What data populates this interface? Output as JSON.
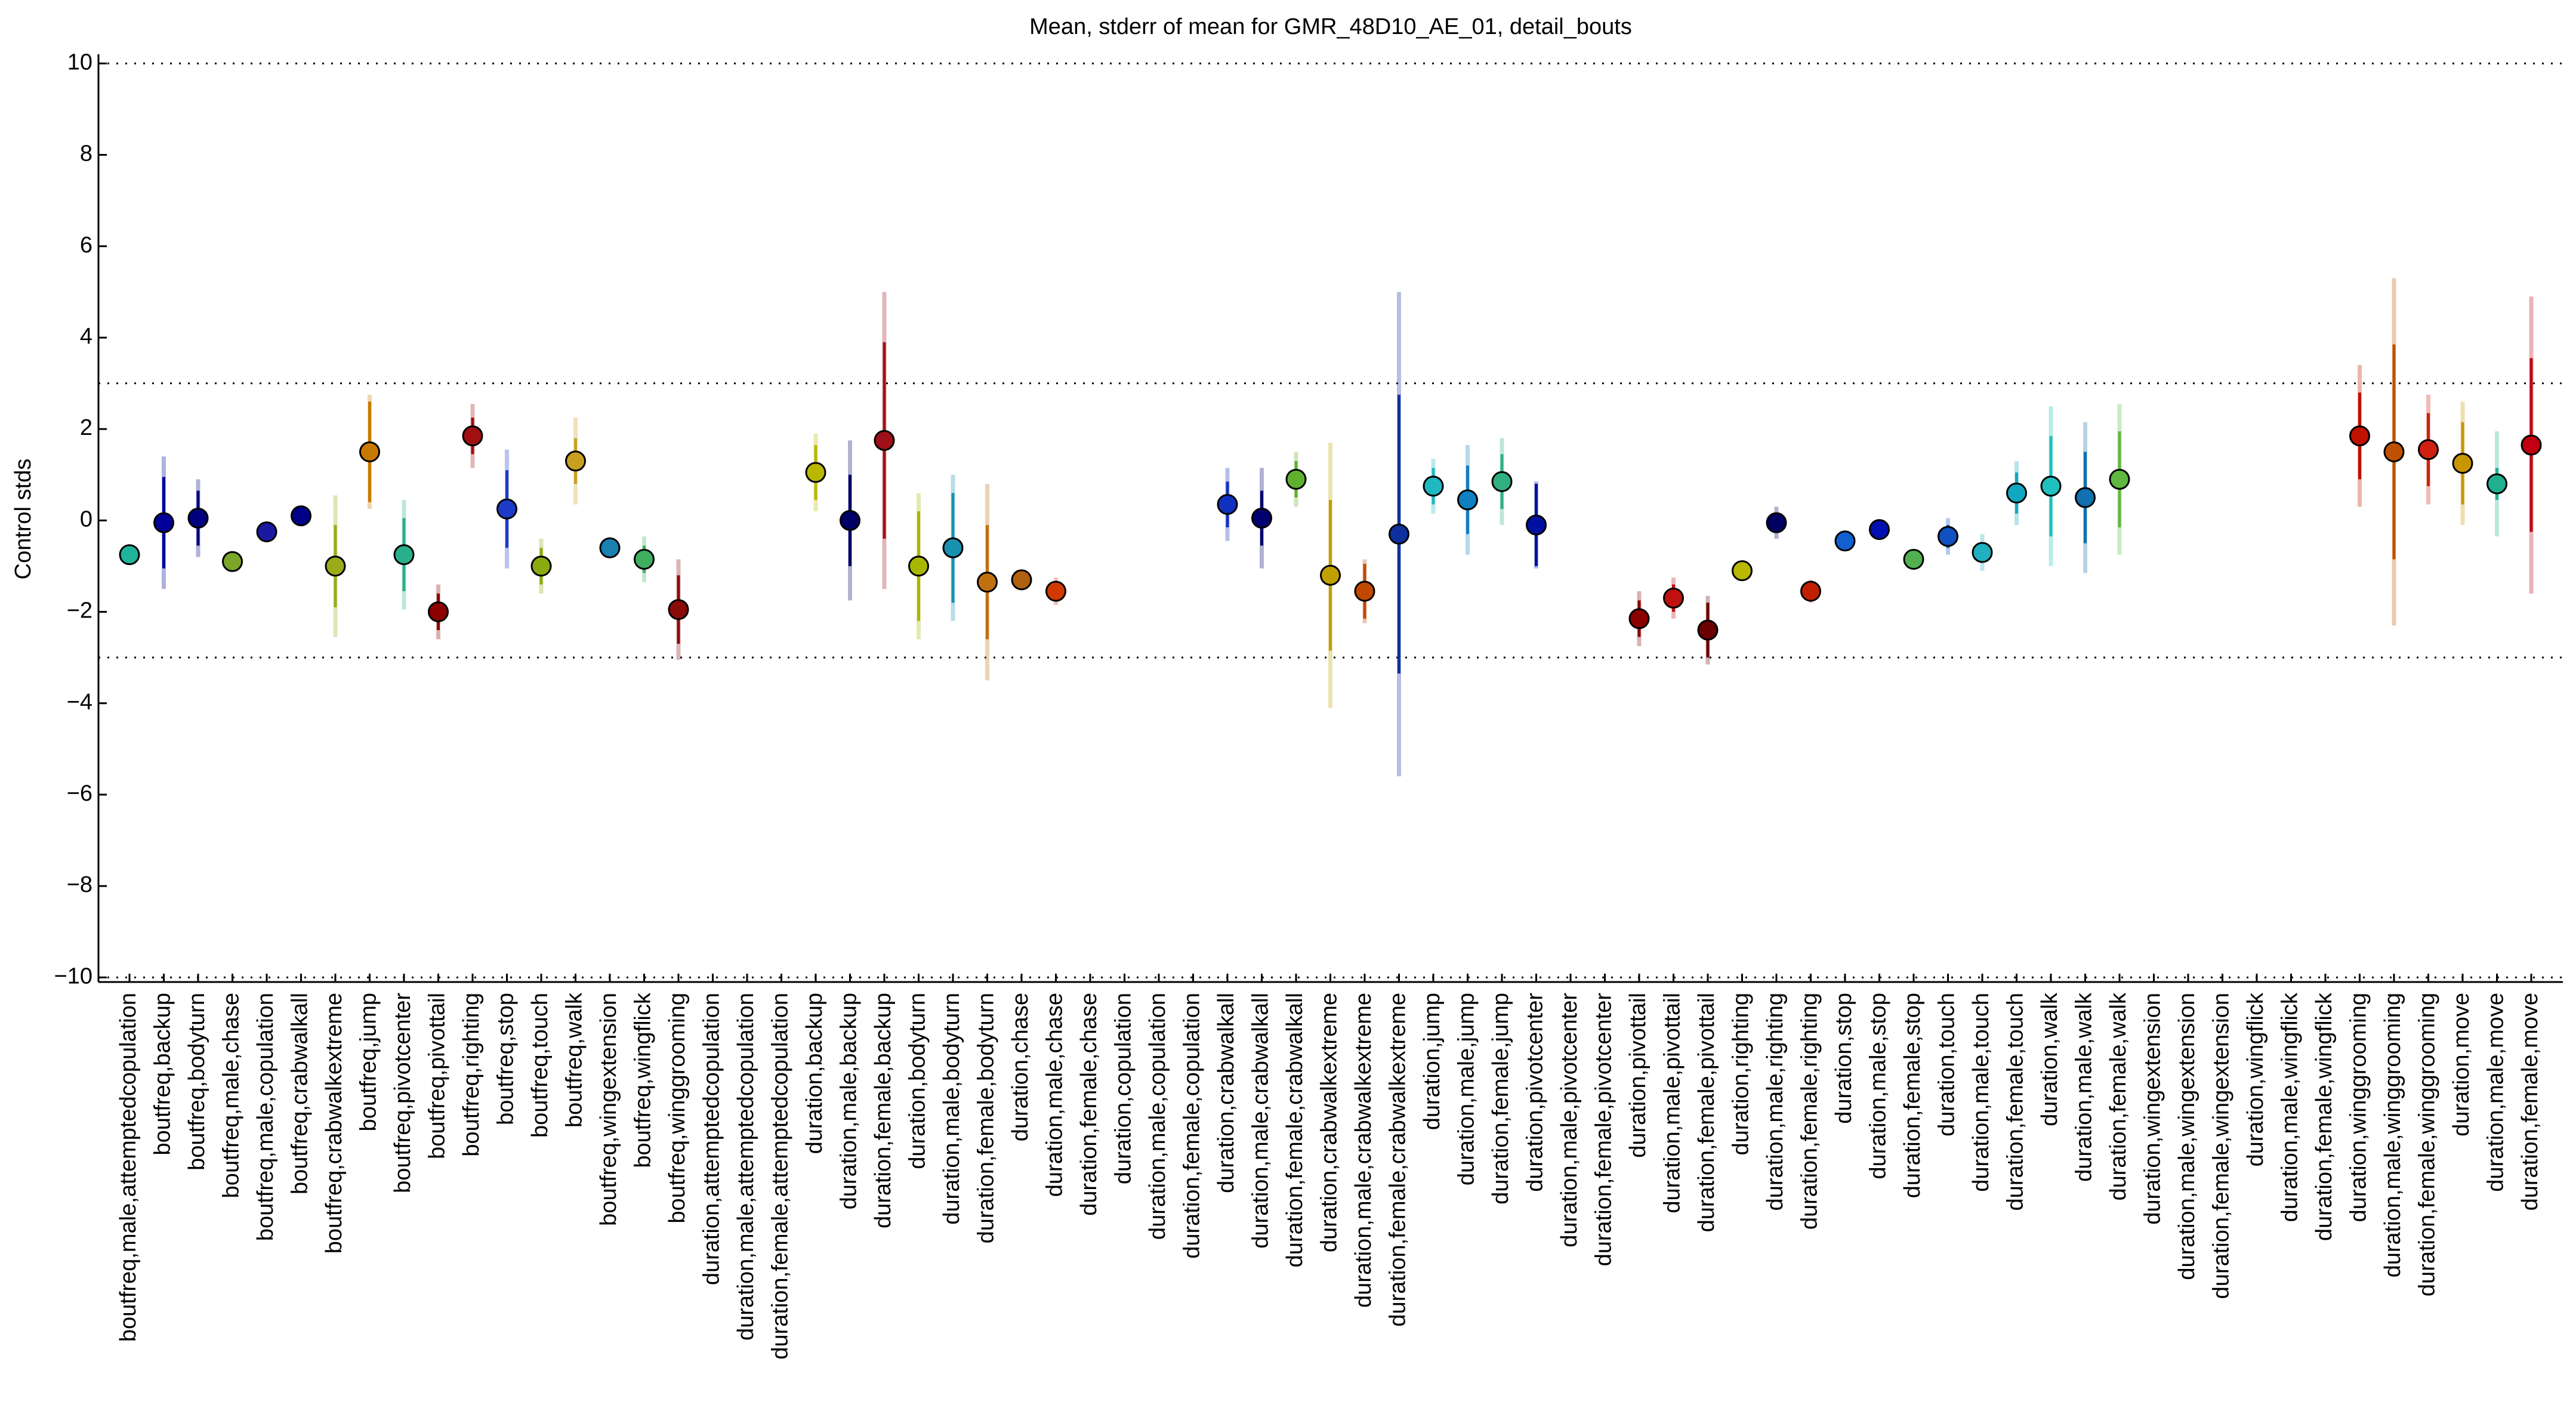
{
  "chart_data": {
    "type": "errorbar",
    "title": "Mean, stderr of mean for GMR_48D10_AE_01, detail_bouts",
    "y_label": "Control stds",
    "categories": [
      "boutfreq,male,attemptedcopulation",
      "boutfreq,backup",
      "boutfreq,bodyturn",
      "boutfreq,male,chase",
      "boutfreq,male,copulation",
      "boutfreq,crabwalkall",
      "boutfreq,crabwalkextreme",
      "boutfreq,jump",
      "boutfreq,pivotcenter",
      "boutfreq,pivottail",
      "boutfreq,righting",
      "boutfreq,stop",
      "boutfreq,touch",
      "boutfreq,walk",
      "boutfreq,wingextension",
      "boutfreq,wingflick",
      "boutfreq,winggrooming",
      "duration,attemptedcopulation",
      "duration,male,attemptedcopulation",
      "duration,female,attemptedcopulation",
      "duration,backup",
      "duration,male,backup",
      "duration,female,backup",
      "duration,bodyturn",
      "duration,male,bodyturn",
      "duration,female,bodyturn",
      "duration,chase",
      "duration,male,chase",
      "duration,female,chase",
      "duration,copulation",
      "duration,male,copulation",
      "duration,female,copulation",
      "duration,crabwalkall",
      "duration,male,crabwalkall",
      "duration,female,crabwalkall",
      "duration,crabwalkextreme",
      "duration,male,crabwalkextreme",
      "duration,female,crabwalkextreme",
      "duration,jump",
      "duration,male,jump",
      "duration,female,jump",
      "duration,pivotcenter",
      "duration,male,pivotcenter",
      "duration,female,pivotcenter",
      "duration,pivottail",
      "duration,male,pivottail",
      "duration,female,pivottail",
      "duration,righting",
      "duration,male,righting",
      "duration,female,righting",
      "duration,stop",
      "duration,male,stop",
      "duration,female,stop",
      "duration,touch",
      "duration,male,touch",
      "duration,female,touch",
      "duration,walk",
      "duration,male,walk",
      "duration,female,walk",
      "duration,wingextension",
      "duration,male,wingextension",
      "duration,female,wingextension",
      "duration,wingflick",
      "duration,male,wingflick",
      "duration,female,wingflick",
      "duration,winggrooming",
      "duration,male,winggrooming",
      "duration,female,winggrooming",
      "duration,move",
      "duration,male,move",
      "duration,female,move"
    ],
    "values": [
      -0.75,
      -0.05,
      0.05,
      -0.9,
      -0.25,
      0.1,
      -1.0,
      1.5,
      -0.75,
      -2.0,
      1.85,
      0.25,
      -1.0,
      1.3,
      -0.6,
      -0.85,
      -1.95,
      null,
      null,
      null,
      1.05,
      0.0,
      1.75,
      -1.0,
      -0.6,
      -1.35,
      -1.3,
      -1.55,
      null,
      null,
      null,
      null,
      0.35,
      0.05,
      0.9,
      -1.2,
      -1.55,
      -0.3,
      0.75,
      0.45,
      0.85,
      -0.1,
      null,
      null,
      -2.15,
      -1.7,
      -2.4,
      -1.1,
      -0.05,
      -1.55,
      -0.45,
      -0.2,
      -0.85,
      -0.35,
      -0.7,
      0.6,
      0.75,
      0.5,
      0.9,
      null,
      null,
      null,
      null,
      null,
      null,
      1.85,
      1.5,
      1.55,
      1.25,
      0.8,
      1.65
    ],
    "errors": [
      0.05,
      1.0,
      0.6,
      0.05,
      0.05,
      0.1,
      0.9,
      1.1,
      0.8,
      0.4,
      0.4,
      0.85,
      0.4,
      0.5,
      0.1,
      0.3,
      0.75,
      null,
      null,
      null,
      0.6,
      1.0,
      2.15,
      1.2,
      1.2,
      1.25,
      0.05,
      0.2,
      null,
      null,
      null,
      null,
      0.5,
      0.6,
      0.4,
      1.65,
      0.6,
      3.05,
      0.4,
      0.75,
      0.6,
      0.9,
      null,
      null,
      0.4,
      0.3,
      0.6,
      0.1,
      0.2,
      0.15,
      0.05,
      0.05,
      0.1,
      0.25,
      0.2,
      0.45,
      1.1,
      1.0,
      1.05,
      null,
      null,
      null,
      null,
      null,
      null,
      0.95,
      2.35,
      0.8,
      0.9,
      0.35,
      1.9
    ],
    "outer_errors": [
      0.1,
      1.45,
      0.85,
      0.1,
      0.1,
      0.2,
      1.55,
      1.25,
      1.2,
      0.6,
      0.7,
      1.3,
      0.6,
      0.95,
      0.2,
      0.5,
      1.1,
      null,
      null,
      null,
      0.85,
      1.75,
      3.25,
      1.6,
      1.6,
      2.15,
      0.1,
      0.3,
      null,
      null,
      null,
      null,
      0.8,
      1.1,
      0.6,
      2.9,
      0.7,
      5.3,
      0.6,
      1.2,
      0.95,
      0.95,
      null,
      null,
      0.6,
      0.45,
      0.75,
      0.2,
      0.35,
      0.25,
      0.1,
      0.1,
      0.2,
      0.4,
      0.4,
      0.7,
      1.75,
      1.65,
      1.65,
      null,
      null,
      null,
      null,
      null,
      null,
      1.55,
      3.8,
      1.2,
      1.35,
      1.15,
      3.25
    ],
    "colors": [
      "#1fb39a",
      "#000099",
      "#000080",
      "#7aa62a",
      "#1a1aa0",
      "#000088",
      "#9aab1a",
      "#c87a00",
      "#27b08a",
      "#8b0000",
      "#a01010",
      "#1c3cc8",
      "#8aaa10",
      "#c8a020",
      "#1a80b0",
      "#40b060",
      "#8b0a0a",
      "#999999",
      "#999999",
      "#999999",
      "#b8b800",
      "#000066",
      "#a01018",
      "#a8b800",
      "#1890b0",
      "#c07010",
      "#b06010",
      "#d03a00",
      "#999999",
      "#999999",
      "#999999",
      "#999999",
      "#1030c0",
      "#000070",
      "#60b030",
      "#c0a000",
      "#c04800",
      "#1030a0",
      "#20b8c0",
      "#1080c0",
      "#30b080",
      "#0010a0",
      "#999999",
      "#999999",
      "#8b0000",
      "#c01010",
      "#6b0000",
      "#b8b800",
      "#000060",
      "#c02000",
      "#1060d0",
      "#0010b0",
      "#50b050",
      "#1050c0",
      "#20b0c0",
      "#10a8c0",
      "#20c0c0",
      "#1070b0",
      "#60b840",
      "#999999",
      "#999999",
      "#999999",
      "#999999",
      "#999999",
      "#999999",
      "#c01000",
      "#c05000",
      "#d02010",
      "#c89600",
      "#20b090",
      "#c00010"
    ],
    "ylim": [
      -10.1,
      10.2
    ],
    "yticks": [
      {
        "value": -10,
        "label": "−10"
      },
      {
        "value": -8,
        "label": "−8"
      },
      {
        "value": -6,
        "label": "−6"
      },
      {
        "value": -4,
        "label": "−4"
      },
      {
        "value": -2,
        "label": "−2"
      },
      0,
      2,
      4,
      6,
      8,
      10
    ],
    "hlines": [
      -10,
      -3,
      0,
      3,
      10
    ]
  }
}
